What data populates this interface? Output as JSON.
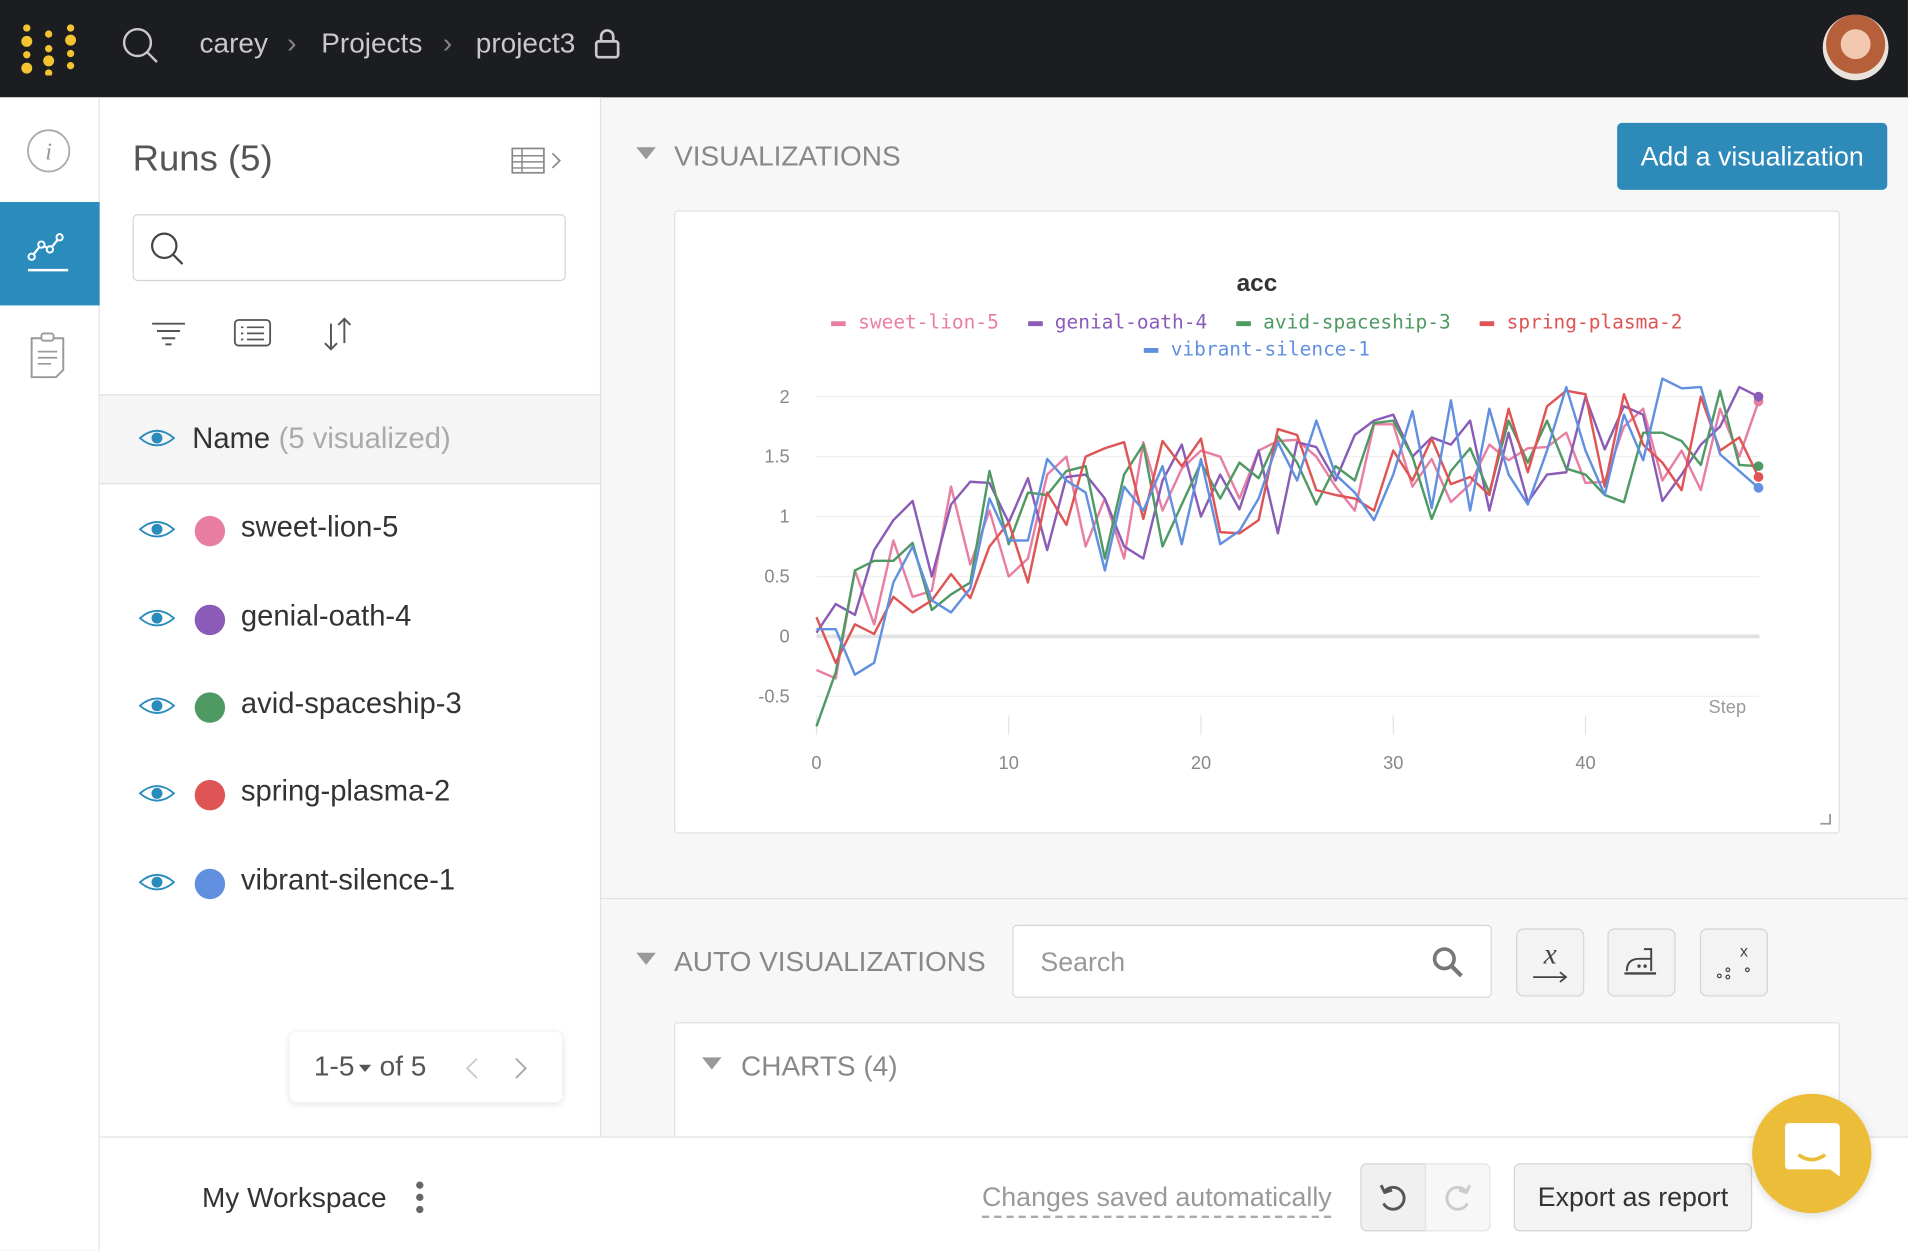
{
  "topbar": {
    "breadcrumb": [
      "carey",
      "Projects",
      "project3"
    ],
    "logo_color": "#f4c430",
    "lock_icon": "lock-icon",
    "avatar": "user-avatar"
  },
  "rail": {
    "items": [
      "info-icon",
      "charts-icon",
      "notes-icon"
    ],
    "active": "charts-icon",
    "accent": "#2a8bbd"
  },
  "runs": {
    "title": "Runs (5)",
    "search_placeholder": "",
    "name_header": "Name",
    "name_count": "(5 visualized)",
    "items": [
      {
        "name": "sweet-lion-5",
        "color": "#e87fa3"
      },
      {
        "name": "genial-oath-4",
        "color": "#8a5cb8"
      },
      {
        "name": "avid-spaceship-3",
        "color": "#4f9a63"
      },
      {
        "name": "spring-plasma-2",
        "color": "#df5454"
      },
      {
        "name": "vibrant-silence-1",
        "color": "#6190e0"
      }
    ],
    "pager": {
      "range": "1-5",
      "of": "of 5"
    }
  },
  "visualizations": {
    "header": "VISUALIZATIONS",
    "add_button": "Add a visualization"
  },
  "auto": {
    "header": "AUTO VISUALIZATIONS",
    "search_placeholder": "Search",
    "charts_header": "CHARTS (4)"
  },
  "bottom": {
    "workspace": "My Workspace",
    "saved": "Changes saved automatically",
    "export": "Export as report"
  },
  "chart_data": {
    "type": "line",
    "title": "acc",
    "xlabel": "Step",
    "ylabel": "",
    "xlim": [
      0,
      49
    ],
    "ylim": [
      -0.75,
      2.15
    ],
    "xticks": [
      0,
      10,
      20,
      30,
      40
    ],
    "yticks": [
      -0.5,
      0,
      0.5,
      1,
      1.5,
      2
    ],
    "ytick_labels": [
      "-0.5",
      "0",
      "0.5",
      "1",
      "1.5",
      "2"
    ],
    "grid": true,
    "legend_position": "top",
    "x": [
      0,
      1,
      2,
      3,
      4,
      5,
      6,
      7,
      8,
      9,
      10,
      11,
      12,
      13,
      14,
      15,
      16,
      17,
      18,
      19,
      20,
      21,
      22,
      23,
      24,
      25,
      26,
      27,
      28,
      29,
      30,
      31,
      32,
      33,
      34,
      35,
      36,
      37,
      38,
      39,
      40,
      41,
      42,
      43,
      44,
      45,
      46,
      47,
      48,
      49
    ],
    "series": [
      {
        "name": "sweet-lion-5",
        "color": "#e87fa3",
        "values": [
          -0.28,
          -0.35,
          0.55,
          0.1,
          0.8,
          0.33,
          0.38,
          1.25,
          0.6,
          1.05,
          0.5,
          0.65,
          1.35,
          1.5,
          0.75,
          1.15,
          0.65,
          1.62,
          1.05,
          1.4,
          1.55,
          1.5,
          1.15,
          1.55,
          1.63,
          1.64,
          1.5,
          1.25,
          1.05,
          1.77,
          1.77,
          1.25,
          1.48,
          1.12,
          1.27,
          1.6,
          1.47,
          1.57,
          1.58,
          1.7,
          1.28,
          1.29,
          1.75,
          1.9,
          1.3,
          1.55,
          1.22,
          1.9,
          1.5,
          1.96
        ]
      },
      {
        "name": "genial-oath-4",
        "color": "#8a5cb8",
        "values": [
          0.03,
          0.27,
          0.18,
          0.72,
          0.97,
          1.13,
          0.5,
          1.1,
          1.29,
          1.28,
          0.95,
          1.32,
          0.72,
          1.33,
          1.35,
          1.15,
          0.75,
          0.65,
          1.3,
          1.6,
          1.0,
          1.35,
          1.06,
          1.55,
          0.86,
          1.62,
          1.58,
          1.3,
          1.68,
          1.8,
          1.85,
          1.5,
          1.66,
          1.6,
          1.8,
          1.05,
          1.7,
          1.12,
          1.35,
          1.37,
          2.0,
          1.56,
          1.92,
          1.85,
          1.13,
          1.35,
          1.6,
          1.75,
          2.08,
          2.0
        ]
      },
      {
        "name": "avid-spaceship-3",
        "color": "#4f9a63",
        "values": [
          -0.75,
          -0.3,
          0.55,
          0.63,
          0.63,
          0.78,
          0.22,
          0.35,
          0.45,
          1.38,
          0.77,
          1.2,
          1.18,
          1.38,
          1.42,
          0.65,
          1.35,
          1.6,
          0.75,
          1.1,
          1.45,
          1.15,
          1.45,
          1.32,
          1.67,
          1.45,
          1.1,
          1.42,
          1.3,
          1.78,
          1.8,
          1.5,
          0.98,
          1.38,
          1.57,
          1.2,
          1.8,
          1.45,
          1.8,
          1.4,
          1.35,
          1.18,
          1.12,
          1.7,
          1.7,
          1.63,
          1.43,
          2.05,
          1.43,
          1.42
        ]
      },
      {
        "name": "spring-plasma-2",
        "color": "#df5454",
        "values": [
          0.16,
          -0.22,
          0.1,
          0.02,
          0.33,
          0.2,
          0.3,
          0.52,
          0.32,
          0.75,
          0.95,
          0.45,
          1.2,
          0.93,
          1.5,
          1.57,
          1.62,
          0.98,
          1.63,
          1.42,
          1.65,
          0.87,
          0.86,
          0.97,
          1.73,
          1.68,
          1.22,
          1.18,
          1.15,
          1.05,
          1.55,
          1.3,
          1.65,
          1.27,
          1.33,
          1.18,
          1.9,
          1.37,
          1.92,
          2.05,
          2.02,
          1.25,
          2.02,
          1.6,
          1.45,
          1.22,
          2.0,
          1.55,
          1.66,
          1.33
        ]
      },
      {
        "name": "vibrant-silence-1",
        "color": "#6190e0",
        "values": [
          0.06,
          0.06,
          -0.32,
          -0.22,
          0.45,
          0.75,
          0.3,
          0.2,
          0.4,
          1.15,
          0.8,
          0.8,
          1.48,
          1.3,
          1.2,
          0.55,
          1.25,
          1.05,
          1.42,
          0.77,
          1.48,
          0.77,
          0.88,
          1.15,
          1.62,
          1.3,
          1.8,
          1.35,
          1.2,
          0.97,
          1.35,
          1.88,
          1.07,
          1.97,
          1.05,
          1.9,
          1.35,
          1.1,
          1.55,
          2.08,
          1.55,
          1.18,
          1.85,
          1.47,
          2.15,
          2.07,
          2.08,
          1.52,
          1.38,
          1.24
        ]
      }
    ]
  },
  "chat_widget": {
    "color": "#ecbd39"
  }
}
